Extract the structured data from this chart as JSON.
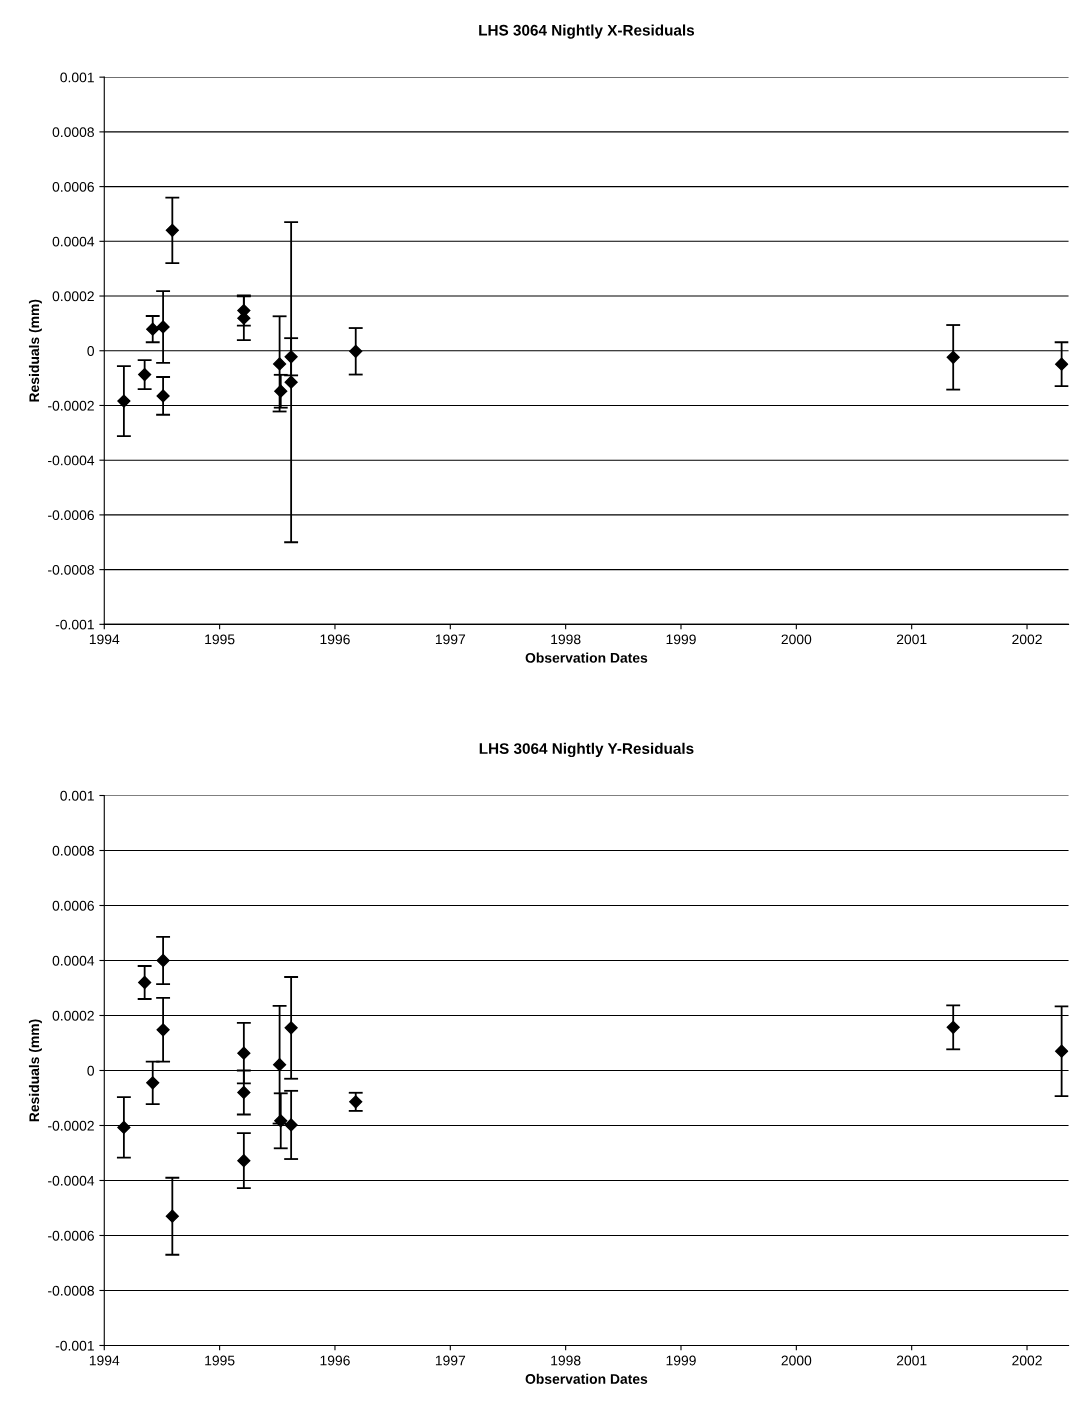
{
  "chart_data": [
    {
      "type": "scatter",
      "title": "LHS 3064 Nightly X-Residuals",
      "xlabel": "Observation Dates",
      "ylabel": "Residuals (mm)",
      "xlim": [
        1994,
        2002.36
      ],
      "xticks": [
        1994,
        1995,
        1996,
        1997,
        1998,
        1999,
        2000,
        2001,
        2002
      ],
      "ylim": [
        -0.001,
        0.001
      ],
      "yticks": [
        -0.001,
        -0.0008,
        -0.0006,
        -0.0004,
        -0.0002,
        0,
        0.0002,
        0.0004,
        0.0006,
        0.0008,
        0.001
      ],
      "grid": "y",
      "legend": false,
      "marker": "diamond",
      "series": [
        {
          "color": "#000000",
          "x": [
            1994.17,
            1994.35,
            1994.42,
            1994.51,
            1994.51,
            1994.59,
            1995.21,
            1995.21,
            1995.52,
            1995.53,
            1995.62,
            1995.62,
            1996.18,
            2001.36,
            2002.3
          ],
          "values": [
            -0.000184,
            -8.7e-05,
            7.9e-05,
            8.7e-05,
            -0.000165,
            0.00044,
            0.000147,
            0.000119,
            -4.8e-05,
            -0.000148,
            -2.2e-05,
            -0.000115,
            -2e-06,
            -2.4e-05,
            -4.9e-05
          ],
          "errors": [
            0.000128,
            5.3e-05,
            4.8e-05,
            0.000131,
            6.9e-05,
            0.00012,
            5.5e-05,
            8e-05,
            0.000174,
            6e-05,
            6.8e-05,
            0.000585,
            8.5e-05,
            0.000118,
            8e-05
          ]
        }
      ]
    },
    {
      "type": "scatter",
      "title": "LHS 3064 Nightly Y-Residuals",
      "xlabel": "Observation Dates",
      "ylabel": "Residuals (mm)",
      "xlim": [
        1994,
        2002.36
      ],
      "xticks": [
        1994,
        1995,
        1996,
        1997,
        1998,
        1999,
        2000,
        2001,
        2002
      ],
      "ylim": [
        -0.001,
        0.001
      ],
      "yticks": [
        -0.001,
        -0.0008,
        -0.0006,
        -0.0004,
        -0.0002,
        0,
        0.0002,
        0.0004,
        0.0006,
        0.0008,
        0.001
      ],
      "grid": "y",
      "legend": false,
      "marker": "diamond",
      "series": [
        {
          "color": "#000000",
          "x": [
            1994.17,
            1994.35,
            1994.42,
            1994.51,
            1994.51,
            1994.59,
            1995.21,
            1995.21,
            1995.21,
            1995.52,
            1995.53,
            1995.62,
            1995.62,
            1996.18,
            2001.36,
            2002.3
          ],
          "values": [
            -0.000207,
            0.00032,
            -4.5e-05,
            0.0004,
            0.000148,
            -0.00053,
            6.3e-05,
            -8e-05,
            -0.000328,
            2.1e-05,
            -0.000183,
            0.000155,
            -0.000198,
            -0.000114,
            0.000157,
            7e-05
          ],
          "errors": [
            0.00011,
            6e-05,
            7.7e-05,
            8.6e-05,
            0.000116,
            0.00014,
            0.00011,
            8e-05,
            0.0001,
            0.000214,
            0.0001,
            0.000185,
            0.000124,
            3.3e-05,
            8e-05,
            0.000163
          ]
        }
      ]
    }
  ]
}
